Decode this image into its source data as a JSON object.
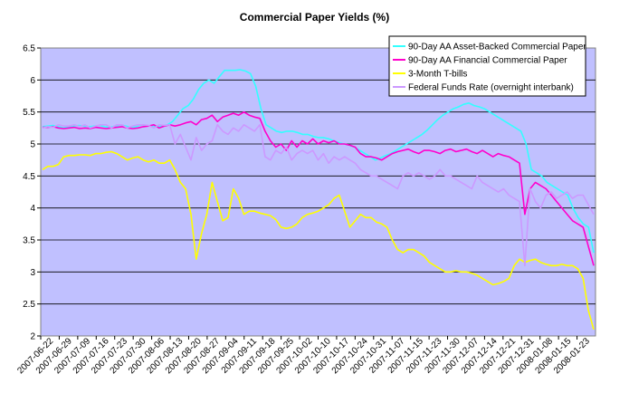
{
  "chart_data": {
    "type": "line",
    "title": "Commercial Paper Yields (%)",
    "xlabel": "",
    "ylabel": "",
    "ylim": [
      2,
      6.5
    ],
    "y_ticks": [
      "2",
      "2.5",
      "3",
      "3.5",
      "4",
      "4.5",
      "5",
      "5.5",
      "6",
      "6.5"
    ],
    "x_tick_labels": [
      "2007-06-22",
      "2007-06-29",
      "2007-07-09",
      "2007-07-16",
      "2007-07-23",
      "2007-07-30",
      "2007-08-06",
      "2007-08-13",
      "2007-08-20",
      "2007-08-27",
      "2007-09-04",
      "2007-09-11",
      "2007-09-18",
      "2007-09-25",
      "2007-10-02",
      "2007-10-10",
      "2007-10-17",
      "2007-10-24",
      "2007-10-31",
      "2007-11-07",
      "2007-11-15",
      "2007-11-23",
      "2007-11-30",
      "2007-12-07",
      "2007-12-14",
      "2007-12-21",
      "2007-12-31",
      "2008-01-08",
      "2008-01-15",
      "2008-01-23"
    ],
    "grid": true,
    "plot_background": "#c0c0ff",
    "legend_position": "top-right",
    "series": [
      {
        "name": "90-Day AA Asset-Backed Commercial Paper",
        "color": "#33ffff",
        "values": [
          5.27,
          5.28,
          5.29,
          5.27,
          5.25,
          5.27,
          5.28,
          5.29,
          5.28,
          5.27,
          5.28,
          5.29,
          5.27,
          5.26,
          5.28,
          5.3,
          5.28,
          5.26,
          5.27,
          5.3,
          5.29,
          5.28,
          5.27,
          5.28,
          5.3,
          5.35,
          5.45,
          5.55,
          5.6,
          5.7,
          5.85,
          5.95,
          6.0,
          5.95,
          6.05,
          6.15,
          6.15,
          6.15,
          6.16,
          6.14,
          6.1,
          5.9,
          5.55,
          5.3,
          5.25,
          5.2,
          5.18,
          5.2,
          5.2,
          5.18,
          5.15,
          5.15,
          5.12,
          5.1,
          5.1,
          5.08,
          5.05,
          5.02,
          5.0,
          4.98,
          4.95,
          4.9,
          4.85,
          4.8,
          4.75,
          4.78,
          4.82,
          4.85,
          4.9,
          4.95,
          5.0,
          5.05,
          5.1,
          5.15,
          5.22,
          5.3,
          5.38,
          5.45,
          5.5,
          5.55,
          5.58,
          5.62,
          5.64,
          5.6,
          5.58,
          5.55,
          5.5,
          5.45,
          5.4,
          5.35,
          5.3,
          5.25,
          5.2,
          5.0,
          4.6,
          4.55,
          4.5,
          4.4,
          4.35,
          4.3,
          4.25,
          4.2,
          4.0,
          3.85,
          3.75,
          3.7,
          3.3
        ]
      },
      {
        "name": "90-Day AA Financial Commercial Paper",
        "color": "#ff00cc",
        "values": [
          5.26,
          5.26,
          5.27,
          5.25,
          5.24,
          5.25,
          5.26,
          5.24,
          5.25,
          5.24,
          5.26,
          5.25,
          5.24,
          5.25,
          5.26,
          5.27,
          5.25,
          5.24,
          5.25,
          5.27,
          5.28,
          5.3,
          5.25,
          5.28,
          5.3,
          5.28,
          5.3,
          5.33,
          5.35,
          5.3,
          5.38,
          5.4,
          5.45,
          5.35,
          5.42,
          5.45,
          5.48,
          5.45,
          5.5,
          5.45,
          5.42,
          5.4,
          5.2,
          5.05,
          4.95,
          5.0,
          4.9,
          5.05,
          4.95,
          5.05,
          5.0,
          5.08,
          5.0,
          5.05,
          5.02,
          5.05,
          5.0,
          5.0,
          4.98,
          4.95,
          4.85,
          4.8,
          4.8,
          4.78,
          4.75,
          4.8,
          4.85,
          4.88,
          4.9,
          4.92,
          4.88,
          4.85,
          4.9,
          4.9,
          4.88,
          4.85,
          4.9,
          4.92,
          4.88,
          4.9,
          4.92,
          4.88,
          4.85,
          4.9,
          4.85,
          4.8,
          4.85,
          4.82,
          4.8,
          4.75,
          4.7,
          3.9,
          4.3,
          4.4,
          4.35,
          4.3,
          4.2,
          4.1,
          4.0,
          3.9,
          3.8,
          3.75,
          3.7,
          3.4,
          3.1
        ]
      },
      {
        "name": "3-Month T-bills",
        "color": "#ffff00",
        "values": [
          4.6,
          4.65,
          4.65,
          4.68,
          4.8,
          4.82,
          4.82,
          4.83,
          4.83,
          4.82,
          4.85,
          4.85,
          4.87,
          4.88,
          4.85,
          4.8,
          4.75,
          4.78,
          4.8,
          4.75,
          4.72,
          4.75,
          4.7,
          4.7,
          4.75,
          4.6,
          4.4,
          4.3,
          3.9,
          3.2,
          3.6,
          3.9,
          4.4,
          4.1,
          3.8,
          3.85,
          4.3,
          4.15,
          3.9,
          3.95,
          3.95,
          3.92,
          3.9,
          3.88,
          3.82,
          3.7,
          3.68,
          3.7,
          3.75,
          3.85,
          3.9,
          3.92,
          3.95,
          4.0,
          4.05,
          4.15,
          4.2,
          3.95,
          3.7,
          3.8,
          3.9,
          3.85,
          3.85,
          3.78,
          3.75,
          3.7,
          3.5,
          3.35,
          3.3,
          3.35,
          3.35,
          3.3,
          3.25,
          3.15,
          3.1,
          3.05,
          3.0,
          3.0,
          3.02,
          3.0,
          3.0,
          2.98,
          2.95,
          2.9,
          2.85,
          2.8,
          2.82,
          2.85,
          2.9,
          3.1,
          3.2,
          3.15,
          3.18,
          3.2,
          3.15,
          3.12,
          3.1,
          3.1,
          3.12,
          3.1,
          3.1,
          3.05,
          2.9,
          2.4,
          2.1
        ]
      },
      {
        "name": "Federal Funds Rate (overnight interbank)",
        "color": "#cc99ff",
        "values": [
          5.25,
          5.27,
          5.26,
          5.3,
          5.28,
          5.28,
          5.3,
          5.27,
          5.3,
          5.25,
          5.28,
          5.3,
          5.3,
          5.25,
          5.3,
          5.3,
          5.25,
          5.28,
          5.3,
          5.3,
          5.29,
          5.25,
          5.3,
          5.29,
          5.3,
          5.0,
          5.15,
          4.95,
          4.75,
          5.1,
          4.9,
          5.0,
          5.05,
          5.3,
          5.2,
          5.15,
          5.25,
          5.2,
          5.3,
          5.25,
          5.2,
          5.3,
          4.8,
          4.75,
          4.9,
          4.85,
          4.95,
          4.75,
          4.85,
          4.9,
          4.85,
          4.9,
          4.75,
          4.85,
          4.7,
          4.8,
          4.75,
          4.8,
          4.75,
          4.7,
          4.6,
          4.55,
          4.5,
          4.5,
          4.45,
          4.4,
          4.35,
          4.3,
          4.5,
          4.55,
          4.5,
          4.55,
          4.5,
          4.45,
          4.5,
          4.6,
          4.5,
          4.5,
          4.45,
          4.4,
          4.35,
          4.3,
          4.5,
          4.4,
          4.35,
          4.3,
          4.25,
          4.3,
          4.2,
          4.15,
          4.1,
          3.1,
          4.3,
          4.1,
          4.0,
          4.2,
          4.25,
          4.15,
          4.2,
          4.25,
          4.15,
          4.2,
          4.2,
          4.05,
          3.9
        ]
      }
    ]
  }
}
